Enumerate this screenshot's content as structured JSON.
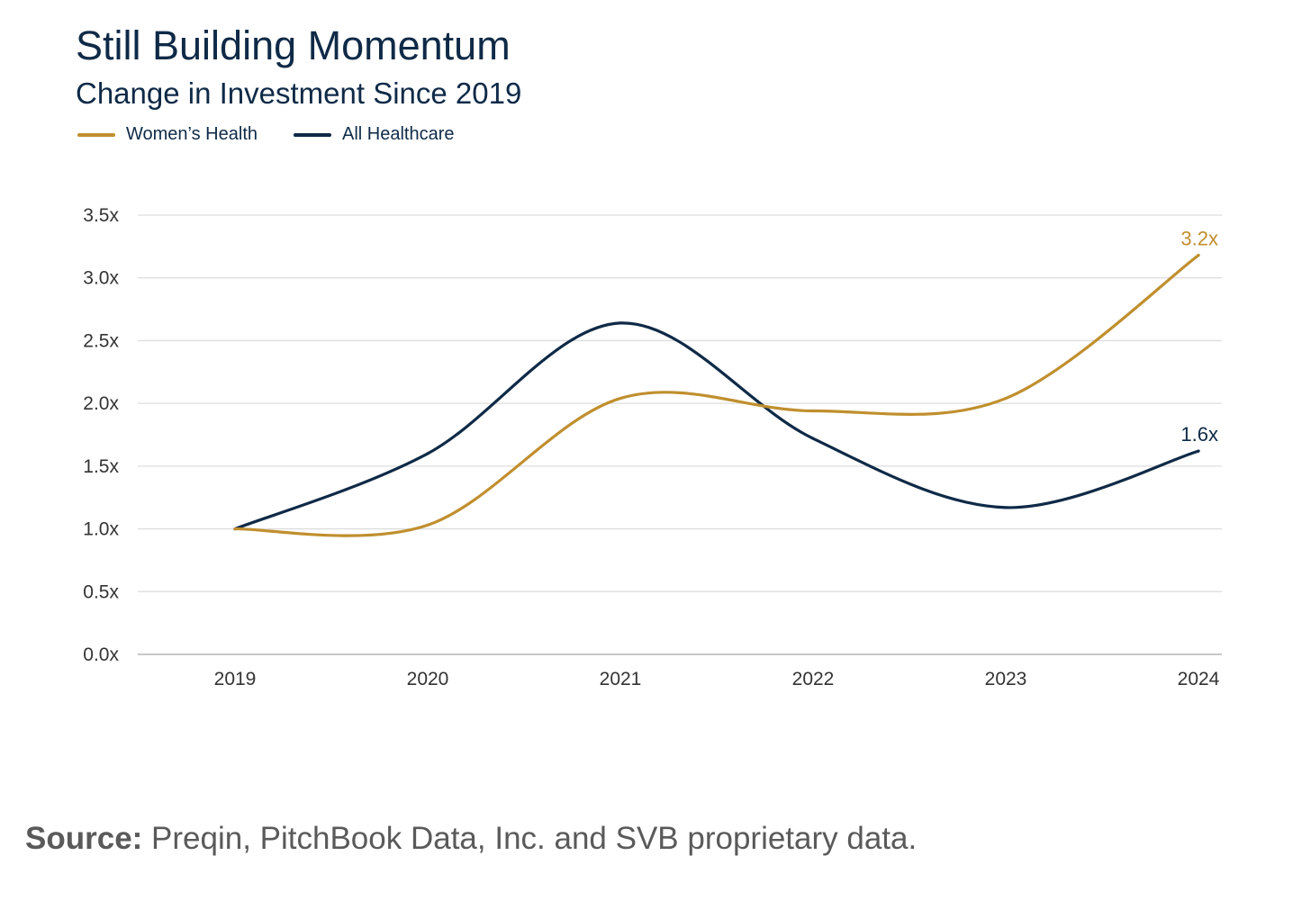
{
  "chart_data": {
    "type": "line",
    "title": "Still Building Momentum",
    "subtitle": "Change in Investment Since 2019",
    "x": [
      "2019",
      "2020",
      "2021",
      "2022",
      "2023",
      "2024"
    ],
    "y_ticks": [
      "0.0x",
      "0.5x",
      "1.0x",
      "1.5x",
      "2.0x",
      "2.5x",
      "3.0x",
      "3.5x"
    ],
    "ylim": [
      0,
      3.5
    ],
    "grid": true,
    "legend_position": "top-left",
    "series": [
      {
        "name": "Women’s Health",
        "color": "#c08f2e",
        "values": [
          1.0,
          1.03,
          2.04,
          1.94,
          2.04,
          3.18
        ],
        "end_label": "3.2x"
      },
      {
        "name": "All Healthcare",
        "color": "#0f2a47",
        "values": [
          1.0,
          1.6,
          2.64,
          1.72,
          1.17,
          1.62
        ],
        "end_label": "1.6x"
      }
    ]
  },
  "source": {
    "label": "Source:",
    "text": " Preqin, PitchBook Data, Inc. and SVB proprietary data."
  }
}
